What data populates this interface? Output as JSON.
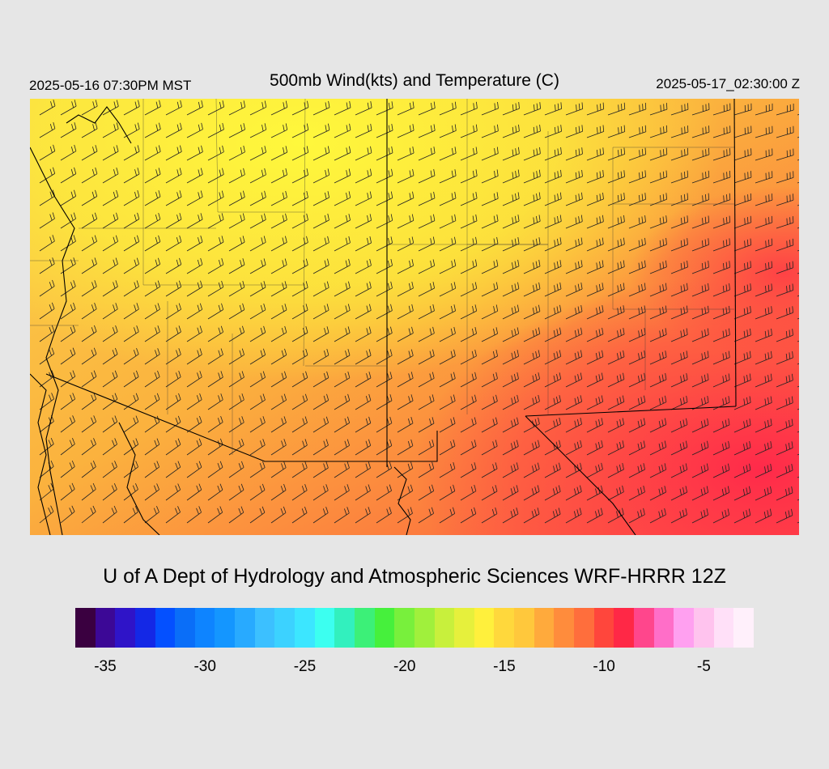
{
  "header": {
    "valid_local": "2025-05-16 07:30PM MST",
    "title": "500mb Wind(kts) and Temperature (C)",
    "valid_utc": "2025-05-17_02:30:00 Z"
  },
  "map": {
    "field": "temperature",
    "barbs": "wind",
    "colors": {
      "background": "#e6e6e6",
      "boundary_line": "#000000"
    }
  },
  "footer": {
    "credit": "U of A Dept of Hydrology and Atmospheric Sciences WRF-HRRR 12Z"
  },
  "colorbar": {
    "colors": [
      "#3a0040",
      "#3c0896",
      "#2f14c8",
      "#1428e6",
      "#0450ff",
      "#0a6ef8",
      "#0e84ff",
      "#1496ff",
      "#28aaff",
      "#3cc0ff",
      "#3cd2ff",
      "#3ce6ff",
      "#3cfff0",
      "#32f0be",
      "#3cf078",
      "#46f03c",
      "#78f03c",
      "#a0f03c",
      "#c8f03c",
      "#e6f03c",
      "#fff03c",
      "#ffd83c",
      "#ffc83c",
      "#ffaa3c",
      "#ff8c3c",
      "#ff6e3c",
      "#ff463c",
      "#ff2846",
      "#ff468c",
      "#ff6ec8",
      "#ffa0f0",
      "#ffc3ee",
      "#ffe0f8",
      "#fff0fb"
    ],
    "tick_labels": [
      "-35",
      "-30",
      "-25",
      "-20",
      "-15",
      "-10",
      "-5"
    ],
    "tick_values": [
      -35,
      -30,
      -25,
      -20,
      -15,
      -10,
      -5
    ],
    "min": -36,
    "max": -1
  }
}
